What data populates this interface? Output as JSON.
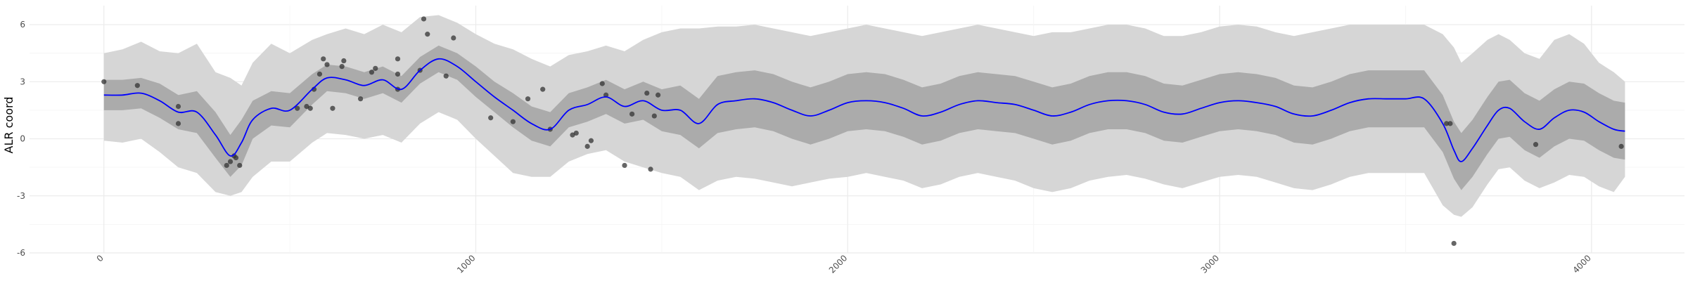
{
  "chart_data": {
    "type": "line",
    "title": "",
    "xlabel": "",
    "ylabel": "ALR coord",
    "xlim": [
      -200,
      4250
    ],
    "ylim": [
      -6,
      7
    ],
    "x_ticks": [
      0,
      1000,
      2000,
      3000,
      4000
    ],
    "x_tick_labels": [
      "0",
      "1000",
      "2000",
      "3000",
      "4000"
    ],
    "y_ticks": [
      -6,
      -3,
      0,
      3,
      6
    ],
    "y_tick_labels": [
      "-6",
      "-3",
      "0",
      "3",
      "6"
    ],
    "grid": true,
    "legend": "none",
    "colors": {
      "mean_line": "#0000ff",
      "inner_band": "#ababab",
      "outer_band": "#d6d6d6",
      "points": "#333333",
      "grid_major": "#ebebeb",
      "grid_minor": "#f4f4f4"
    },
    "mean_curve": {
      "x": [
        0,
        50,
        100,
        150,
        200,
        250,
        300,
        340,
        370,
        400,
        450,
        500,
        560,
        600,
        650,
        700,
        750,
        800,
        850,
        900,
        950,
        1000,
        1050,
        1100,
        1150,
        1200,
        1250,
        1300,
        1350,
        1400,
        1450,
        1500,
        1550,
        1600,
        1650,
        1700,
        1750,
        1800,
        1850,
        1900,
        1950,
        2000,
        2050,
        2100,
        2150,
        2200,
        2250,
        2300,
        2350,
        2400,
        2450,
        2500,
        2550,
        2600,
        2650,
        2700,
        2750,
        2800,
        2850,
        2900,
        2950,
        3000,
        3050,
        3100,
        3150,
        3200,
        3250,
        3300,
        3350,
        3400,
        3450,
        3500,
        3550,
        3600,
        3630,
        3650,
        3680,
        3720,
        3750,
        3780,
        3820,
        3860,
        3900,
        3940,
        3980,
        4020,
        4060,
        4090
      ],
      "y": [
        2.3,
        2.3,
        2.4,
        2.0,
        1.4,
        1.4,
        0.2,
        -0.9,
        -0.2,
        1.0,
        1.6,
        1.5,
        2.6,
        3.2,
        3.1,
        2.8,
        3.1,
        2.6,
        3.6,
        4.2,
        3.8,
        3.0,
        2.2,
        1.5,
        0.8,
        0.5,
        1.5,
        1.8,
        2.2,
        1.7,
        2.0,
        1.5,
        1.5,
        0.8,
        1.8,
        2.0,
        2.1,
        1.9,
        1.5,
        1.2,
        1.5,
        1.9,
        2.0,
        1.9,
        1.6,
        1.2,
        1.4,
        1.8,
        2.0,
        1.9,
        1.8,
        1.5,
        1.2,
        1.4,
        1.8,
        2.0,
        2.0,
        1.8,
        1.4,
        1.3,
        1.6,
        1.9,
        2.0,
        1.9,
        1.7,
        1.3,
        1.2,
        1.5,
        1.9,
        2.1,
        2.1,
        2.1,
        2.1,
        0.8,
        -0.6,
        -1.2,
        -0.5,
        0.7,
        1.5,
        1.6,
        0.9,
        0.5,
        1.1,
        1.5,
        1.4,
        0.9,
        0.5,
        0.4
      ]
    },
    "inner_band": {
      "lower": [
        1.5,
        1.5,
        1.6,
        1.1,
        0.5,
        0.3,
        -1.0,
        -2.0,
        -1.4,
        0.0,
        0.7,
        0.6,
        1.8,
        2.5,
        2.4,
        2.1,
        2.4,
        1.9,
        2.9,
        3.5,
        3.1,
        2.2,
        1.4,
        0.6,
        -0.1,
        -0.4,
        0.6,
        0.9,
        1.3,
        0.8,
        1.0,
        0.4,
        0.2,
        -0.5,
        0.3,
        0.5,
        0.6,
        0.4,
        0.0,
        -0.3,
        0.0,
        0.4,
        0.5,
        0.4,
        0.1,
        -0.3,
        -0.1,
        0.3,
        0.5,
        0.4,
        0.3,
        0.0,
        -0.3,
        -0.1,
        0.3,
        0.5,
        0.5,
        0.3,
        -0.1,
        -0.2,
        0.1,
        0.4,
        0.5,
        0.4,
        0.2,
        -0.2,
        -0.3,
        0.0,
        0.4,
        0.6,
        0.6,
        0.6,
        0.6,
        -0.7,
        -2.1,
        -2.7,
        -2.0,
        -0.8,
        0.0,
        0.1,
        -0.6,
        -1.0,
        -0.4,
        0.0,
        -0.1,
        -0.6,
        -1.0,
        -1.1
      ],
      "upper": [
        3.1,
        3.1,
        3.2,
        2.9,
        2.3,
        2.5,
        1.4,
        0.2,
        1.0,
        2.0,
        2.5,
        2.4,
        3.4,
        3.9,
        3.8,
        3.5,
        3.8,
        3.3,
        4.3,
        4.9,
        4.5,
        3.8,
        3.0,
        2.4,
        1.7,
        1.4,
        2.4,
        2.7,
        3.1,
        2.6,
        3.0,
        2.6,
        2.8,
        2.1,
        3.3,
        3.5,
        3.6,
        3.4,
        3.0,
        2.7,
        3.0,
        3.4,
        3.5,
        3.4,
        3.1,
        2.7,
        2.9,
        3.3,
        3.5,
        3.4,
        3.3,
        3.0,
        2.7,
        2.9,
        3.3,
        3.5,
        3.5,
        3.3,
        2.9,
        2.8,
        3.1,
        3.4,
        3.5,
        3.4,
        3.2,
        2.8,
        2.7,
        3.0,
        3.4,
        3.6,
        3.6,
        3.6,
        3.6,
        2.3,
        0.9,
        0.3,
        1.0,
        2.2,
        3.0,
        3.1,
        2.4,
        2.0,
        2.6,
        3.0,
        2.9,
        2.4,
        2.0,
        1.9
      ]
    },
    "outer_band": {
      "lower": [
        -0.1,
        -0.2,
        0.0,
        -0.7,
        -1.5,
        -1.8,
        -2.8,
        -3.0,
        -2.8,
        -2.0,
        -1.2,
        -1.2,
        -0.2,
        0.3,
        0.2,
        0.0,
        0.2,
        -0.2,
        0.8,
        1.4,
        1.0,
        0.0,
        -0.9,
        -1.8,
        -2.0,
        -2.0,
        -1.2,
        -0.8,
        -0.6,
        -1.2,
        -1.5,
        -1.8,
        -2.0,
        -2.7,
        -2.2,
        -2.0,
        -2.1,
        -2.3,
        -2.5,
        -2.3,
        -2.1,
        -2.0,
        -1.8,
        -2.0,
        -2.2,
        -2.6,
        -2.4,
        -2.0,
        -1.8,
        -2.0,
        -2.2,
        -2.6,
        -2.8,
        -2.6,
        -2.2,
        -2.0,
        -1.9,
        -2.1,
        -2.4,
        -2.6,
        -2.3,
        -2.0,
        -1.9,
        -2.0,
        -2.3,
        -2.6,
        -2.7,
        -2.4,
        -2.0,
        -1.8,
        -1.8,
        -1.8,
        -1.8,
        -3.5,
        -4.0,
        -4.1,
        -3.6,
        -2.4,
        -1.6,
        -1.5,
        -2.2,
        -2.6,
        -2.3,
        -1.9,
        -2.0,
        -2.5,
        -2.8,
        -2.0
      ],
      "upper": [
        4.5,
        4.7,
        5.1,
        4.6,
        4.5,
        5.0,
        3.5,
        3.2,
        2.8,
        4.0,
        5.0,
        4.5,
        5.2,
        5.5,
        5.8,
        5.5,
        6.0,
        5.6,
        6.4,
        6.5,
        6.1,
        5.5,
        5.0,
        4.7,
        4.2,
        3.8,
        4.4,
        4.6,
        4.9,
        4.6,
        5.2,
        5.6,
        5.8,
        5.8,
        5.9,
        5.9,
        6.0,
        5.8,
        5.6,
        5.4,
        5.6,
        5.8,
        6.0,
        5.8,
        5.6,
        5.4,
        5.6,
        5.8,
        6.0,
        5.8,
        5.6,
        5.4,
        5.6,
        5.6,
        5.8,
        6.0,
        6.0,
        5.8,
        5.4,
        5.4,
        5.6,
        5.9,
        6.0,
        5.9,
        5.6,
        5.4,
        5.6,
        5.8,
        6.0,
        6.0,
        6.0,
        6.0,
        6.0,
        5.5,
        4.8,
        4.0,
        4.5,
        5.2,
        5.5,
        5.2,
        4.5,
        4.2,
        5.2,
        5.5,
        5.0,
        4.0,
        3.5,
        3.0
      ]
    },
    "points": {
      "x": [
        0,
        90,
        200,
        200,
        330,
        340,
        350,
        355,
        365,
        520,
        545,
        555,
        565,
        580,
        590,
        600,
        615,
        640,
        645,
        690,
        720,
        730,
        790,
        790,
        790,
        850,
        860,
        870,
        920,
        940,
        1040,
        1100,
        1140,
        1180,
        1200,
        1260,
        1270,
        1300,
        1310,
        1340,
        1350,
        1400,
        1420,
        1460,
        1470,
        1480,
        1490,
        3610,
        3620,
        3630,
        3850,
        4080
      ],
      "y": [
        3.0,
        2.8,
        1.7,
        0.8,
        -1.4,
        -1.2,
        -0.9,
        -1.0,
        -1.4,
        1.6,
        1.7,
        1.6,
        2.6,
        3.4,
        4.2,
        3.9,
        1.6,
        3.8,
        4.1,
        2.1,
        3.5,
        3.7,
        4.2,
        3.4,
        2.6,
        3.6,
        6.3,
        5.5,
        3.3,
        5.3,
        1.1,
        0.9,
        2.1,
        2.6,
        0.5,
        0.2,
        0.3,
        -0.4,
        -0.1,
        2.9,
        2.3,
        -1.4,
        1.3,
        2.4,
        -1.6,
        1.2,
        2.3,
        0.8,
        0.8,
        -5.5,
        -0.3,
        -0.4
      ]
    }
  }
}
